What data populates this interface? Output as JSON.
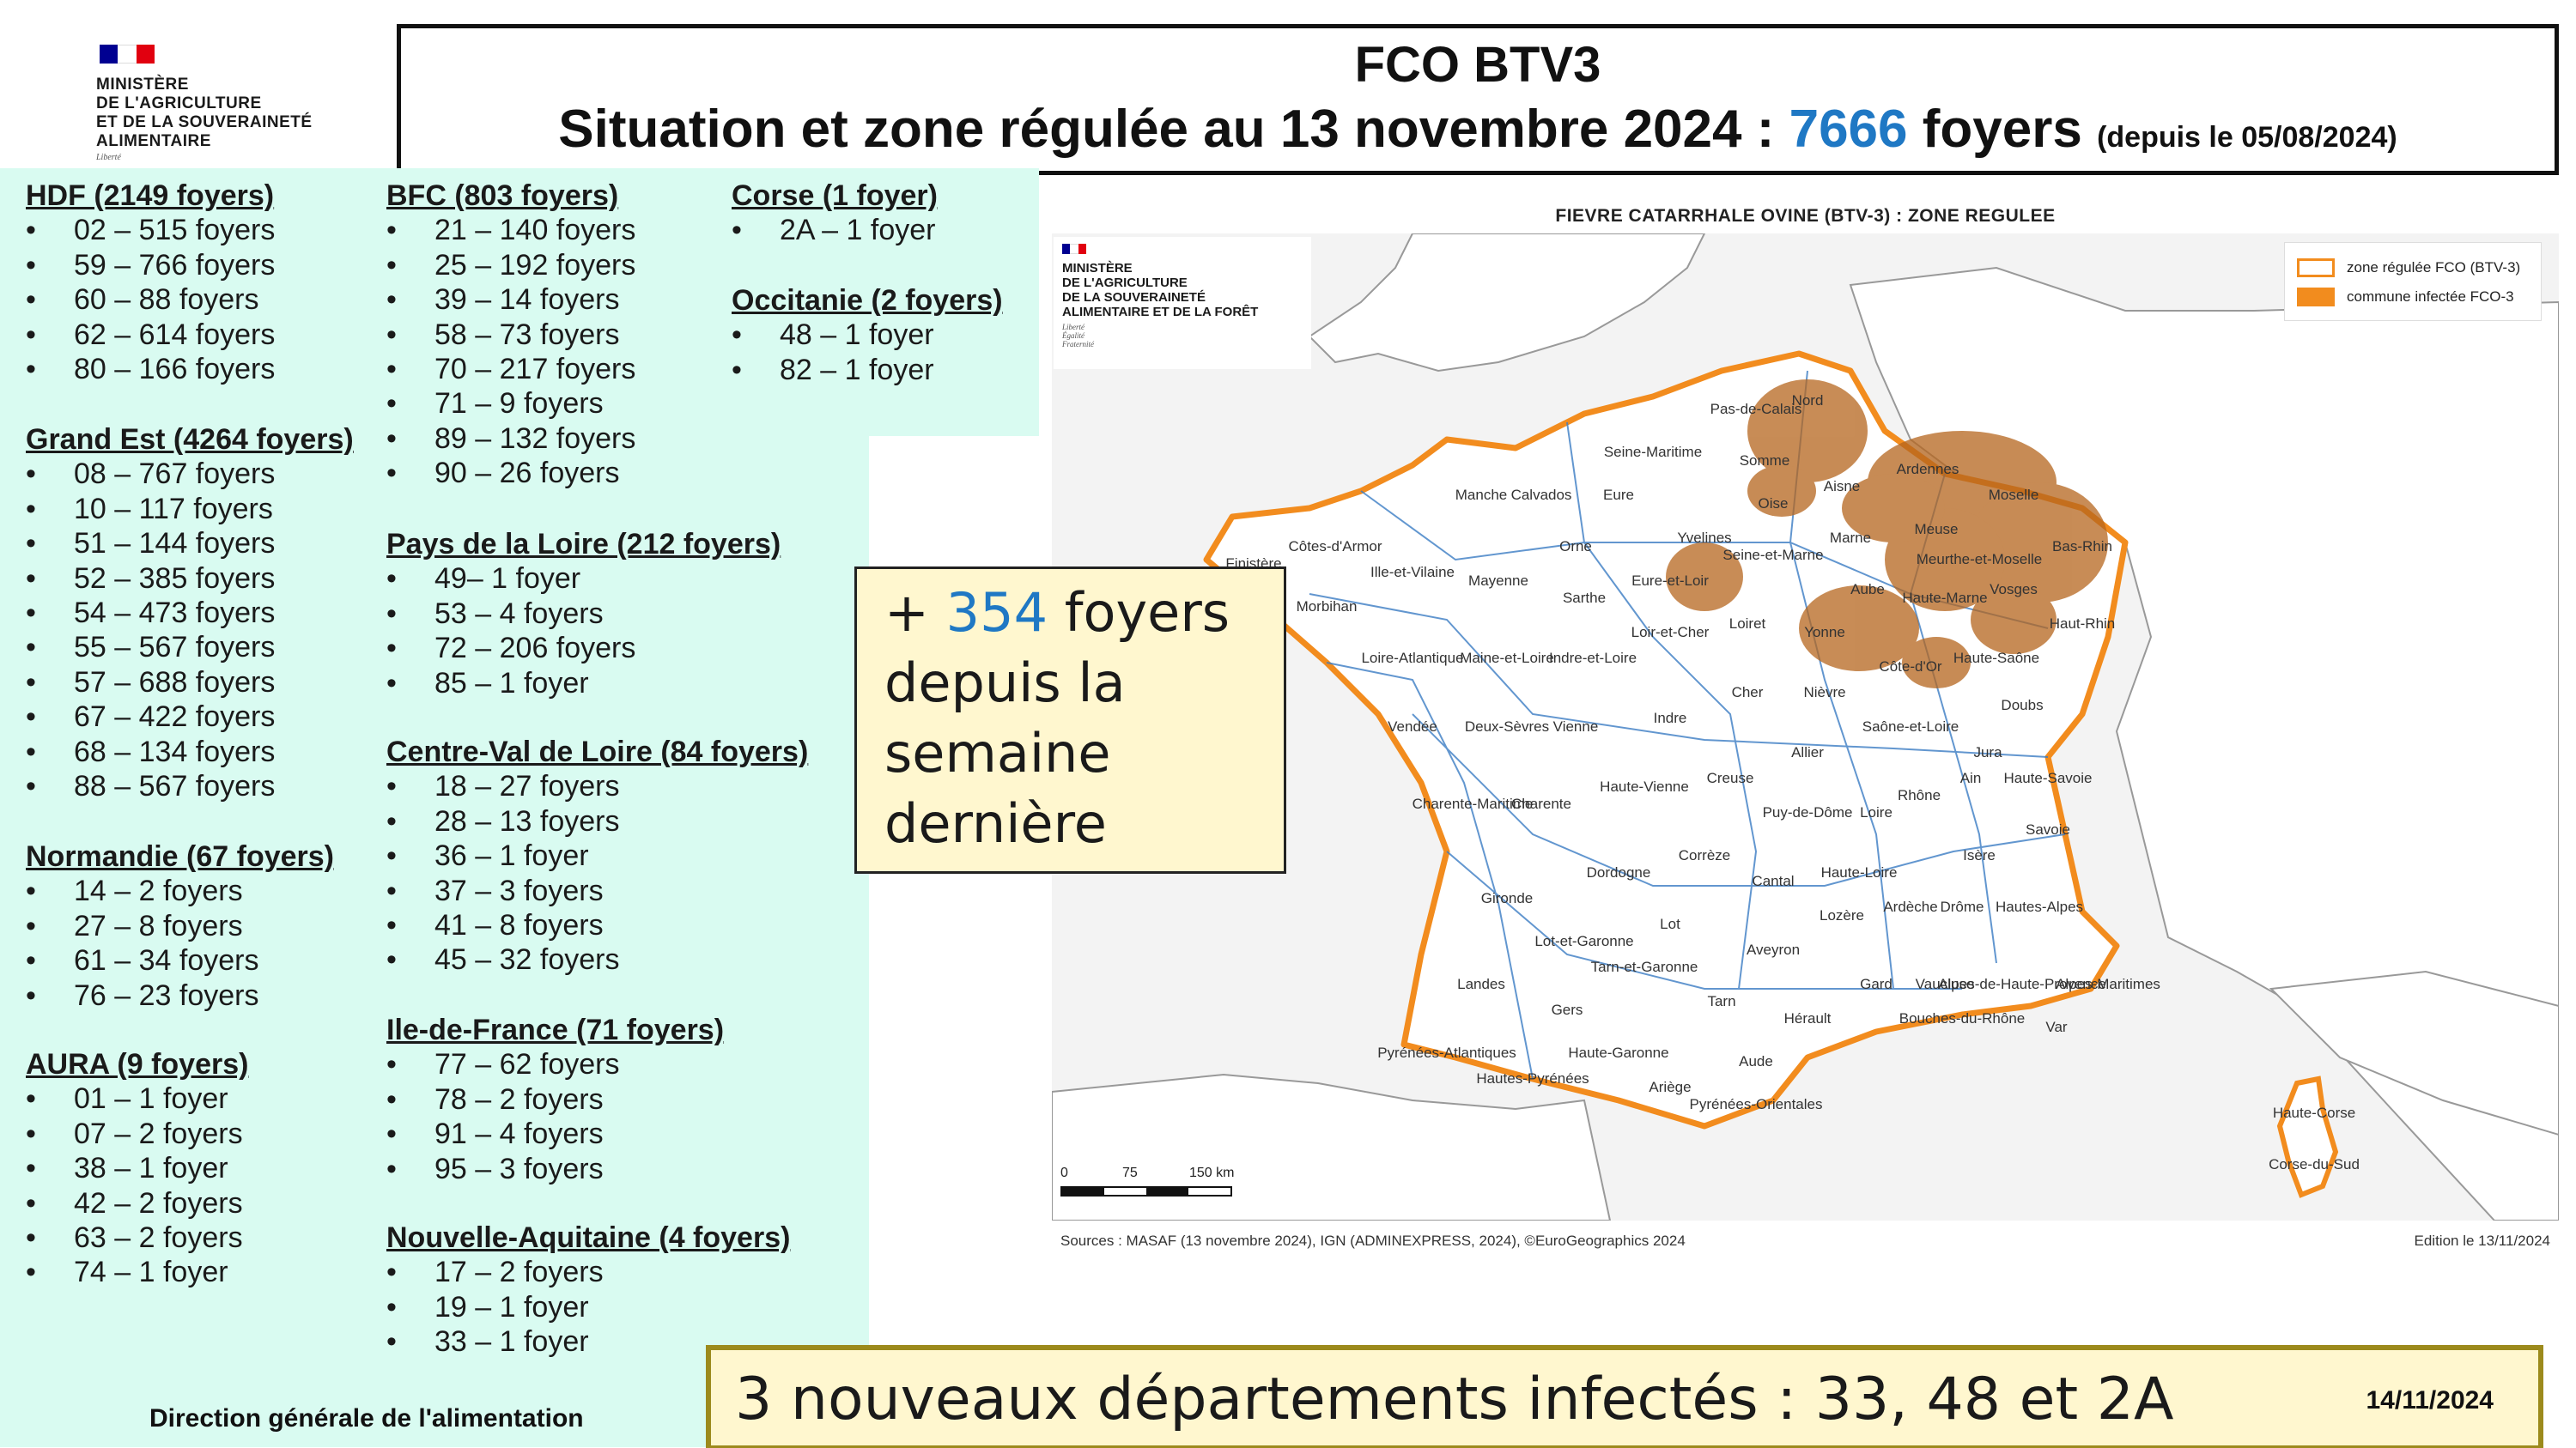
{
  "header": {
    "ministry_lines": [
      "MINISTÈRE",
      "DE L'AGRICULTURE",
      "ET DE LA SOUVERAINETÉ",
      "ALIMENTAIRE"
    ],
    "ministry_motto": "Liberté",
    "title_line1": "FCO BTV3",
    "title_line2_prefix": "Situation et zone régulée au 13 novembre 2024 : ",
    "title_count": "7666",
    "title_unit": " foyers ",
    "title_since": "(depuis le 05/08/2024)",
    "flag_colors": [
      "#000091",
      "#ffffff",
      "#e1000f"
    ]
  },
  "regions": [
    {
      "title": "HDF (2149 foyers)",
      "items": [
        "02 – 515 foyers",
        "59 – 766 foyers",
        "60 – 88 foyers",
        "62 – 614 foyers",
        "80 – 166 foyers"
      ]
    },
    {
      "title": "Grand Est (4264 foyers)",
      "items": [
        "08 – 767 foyers",
        "10 – 117 foyers",
        "51 – 144 foyers",
        "52 – 385 foyers",
        "54 – 473 foyers",
        "55 – 567 foyers",
        "57 – 688 foyers",
        "67 – 422 foyers",
        "68 – 134 foyers",
        "88 – 567 foyers"
      ]
    },
    {
      "title": "Normandie (67 foyers)",
      "items": [
        "14 – 2 foyers",
        "27 – 8 foyers",
        "61 – 34 foyers",
        "76 – 23 foyers"
      ]
    },
    {
      "title": "AURA (9 foyers)",
      "items": [
        "01 – 1 foyer",
        "07 – 2 foyers",
        "38 – 1 foyer",
        "42 – 2 foyers",
        "63 – 2 foyers",
        "74 – 1 foyer"
      ]
    },
    {
      "title": "BFC (803 foyers)",
      "items": [
        "21 – 140 foyers",
        "25 – 192 foyers",
        "39 – 14 foyers",
        "58 – 73 foyers",
        "70 – 217 foyers",
        "71 – 9 foyers",
        "89 – 132 foyers",
        "90 – 26 foyers"
      ]
    },
    {
      "title": "Pays de la Loire (212 foyers)",
      "items": [
        "49– 1 foyer",
        "53 – 4 foyers",
        "72 – 206 foyers",
        "85 – 1 foyer"
      ]
    },
    {
      "title": "Centre-Val de Loire (84 foyers)",
      "items": [
        "18 – 27 foyers",
        "28 – 13 foyers",
        "36 – 1 foyer",
        "37 – 3 foyers",
        "41 – 8 foyers",
        "45 – 32 foyers"
      ]
    },
    {
      "title": "Ile-de-France (71 foyers)",
      "items": [
        "77 – 62 foyers",
        "78 – 2 foyers",
        "91 – 4 foyers",
        "95 – 3 foyers"
      ]
    },
    {
      "title": "Nouvelle-Aquitaine (4 foyers)",
      "items": [
        "17 – 2 foyers",
        "19 – 1 foyer",
        "33 – 1 foyer"
      ]
    },
    {
      "title": "Corse (1 foyer)",
      "items": [
        "2A – 1 foyer"
      ]
    },
    {
      "title": "Occitanie (2 foyers)",
      "items": [
        "48 – 1 foyer",
        "82 – 1 foyer"
      ]
    }
  ],
  "footer_left": "Direction générale de l'alimentation",
  "map": {
    "title": "FIEVRE CATARRHALE OVINE (BTV-3) : ZONE REGULEE",
    "ministry_lines": [
      "MINISTÈRE",
      "DE L'AGRICULTURE",
      "DE LA SOUVERAINETÉ",
      "ALIMENTAIRE ET DE LA FORÊT"
    ],
    "ministry_motto": [
      "Liberté",
      "Égalité",
      "Fraternité"
    ],
    "legend": [
      {
        "label": "zone régulée FCO (BTV-3)",
        "kind": "outline",
        "color": "#f28c1e"
      },
      {
        "label": "commune infectée FCO-3",
        "kind": "fill",
        "color": "#f28c1e"
      }
    ],
    "scale_ticks": [
      "0",
      "75",
      "150 km"
    ],
    "sources": "Sources : MASAF (13 novembre 2024), IGN (ADMINEXPRESS, 2024), ©EuroGeographics 2024",
    "edition": "Edition le 13/11/2024",
    "department_labels": [
      "Nord",
      "Pas-de-Calais",
      "Somme",
      "Aisne",
      "Ardennes",
      "Oise",
      "Seine-Maritime",
      "Calvados",
      "Manche",
      "Eure",
      "Orne",
      "Marne",
      "Meuse",
      "Moselle",
      "Bas-Rhin",
      "Haut-Rhin",
      "Vosges",
      "Meurthe-et-Moselle",
      "Aube",
      "Haute-Marne",
      "Yvelines",
      "Seine-et-Marne",
      "Eure-et-Loir",
      "Loiret",
      "Yonne",
      "Côte-d'Or",
      "Haute-Saône",
      "Doubs",
      "Jura",
      "Finistère",
      "Côtes-d'Armor",
      "Morbihan",
      "Ille-et-Vilaine",
      "Mayenne",
      "Sarthe",
      "Loir-et-Cher",
      "Loire-Atlantique",
      "Maine-et-Loire",
      "Indre-et-Loire",
      "Cher",
      "Nièvre",
      "Saône-et-Loire",
      "Vendée",
      "Deux-Sèvres",
      "Vienne",
      "Indre",
      "Allier",
      "Charente-Maritime",
      "Charente",
      "Haute-Vienne",
      "Creuse",
      "Puy-de-Dôme",
      "Loire",
      "Rhône",
      "Ain",
      "Haute-Savoie",
      "Savoie",
      "Isère",
      "Corrèze",
      "Cantal",
      "Haute-Loire",
      "Dordogne",
      "Gironde",
      "Lot-et-Garonne",
      "Lot",
      "Aveyron",
      "Lozère",
      "Ardèche",
      "Drôme",
      "Hautes-Alpes",
      "Landes",
      "Gers",
      "Tarn-et-Garonne",
      "Tarn",
      "Gard",
      "Vaucluse",
      "Alpes-de-Haute-Provence",
      "Alpes-Maritimes",
      "Bouches-du-Rhône",
      "Var",
      "Hérault",
      "Aude",
      "Pyrénées-Atlantiques",
      "Hautes-Pyrénées",
      "Haute-Garonne",
      "Ariège",
      "Pyrénées-Orientales",
      "Haute-Corse",
      "Corse-du-Sud"
    ]
  },
  "callout_new": {
    "prefix": "+ ",
    "count": "354",
    "suffix": " foyers",
    "line2": "depuis la",
    "line3": "semaine",
    "line4": "dernière"
  },
  "callout_bottom": {
    "text": "3 nouveaux départements infectés : 33, 48 et 2A",
    "date": "14/11/2024"
  },
  "colors": {
    "accent_blue": "#1f78c4",
    "panel_green": "#d9fbf1",
    "callout_yellow": "#fff7cf",
    "zone_orange": "#f28c1e",
    "border_blue": "#3b7dc4"
  }
}
